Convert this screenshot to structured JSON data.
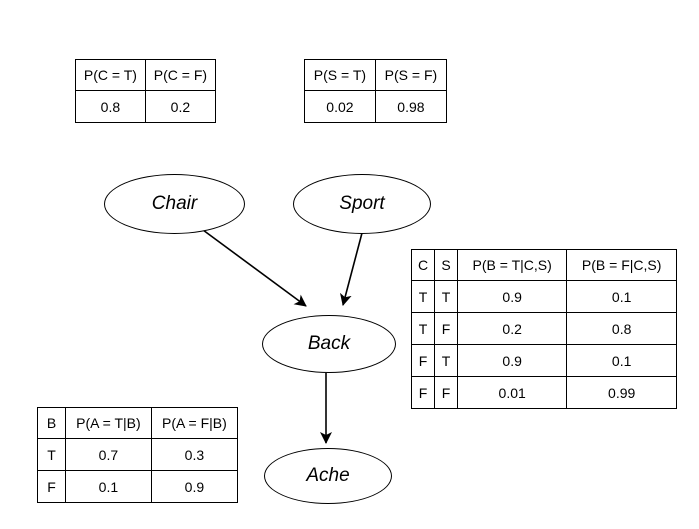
{
  "nodes": {
    "chair": "Chair",
    "sport": "Sport",
    "back": "Back",
    "ache": "Ache"
  },
  "cpt_chair": {
    "headers": [
      "P(C = T)",
      "P(C = F)"
    ],
    "rows": [
      [
        "0.8",
        "0.2"
      ]
    ]
  },
  "cpt_sport": {
    "headers": [
      "P(S = T)",
      "P(S = F)"
    ],
    "rows": [
      [
        "0.02",
        "0.98"
      ]
    ]
  },
  "cpt_back": {
    "headers": [
      "C",
      "S",
      "P(B = T|C,S)",
      "P(B = F|C,S)"
    ],
    "rows": [
      [
        "T",
        "T",
        "0.9",
        "0.1"
      ],
      [
        "T",
        "F",
        "0.2",
        "0.8"
      ],
      [
        "F",
        "T",
        "0.9",
        "0.1"
      ],
      [
        "F",
        "F",
        "0.01",
        "0.99"
      ]
    ]
  },
  "cpt_ache": {
    "headers": [
      "B",
      "P(A = T|B)",
      "P(A = F|B)"
    ],
    "rows": [
      [
        "T",
        "0.7",
        "0.3"
      ],
      [
        "F",
        "0.1",
        "0.9"
      ]
    ]
  },
  "edges": [
    {
      "from": "Chair",
      "to": "Back"
    },
    {
      "from": "Sport",
      "to": "Back"
    },
    {
      "from": "Back",
      "to": "Ache"
    }
  ]
}
